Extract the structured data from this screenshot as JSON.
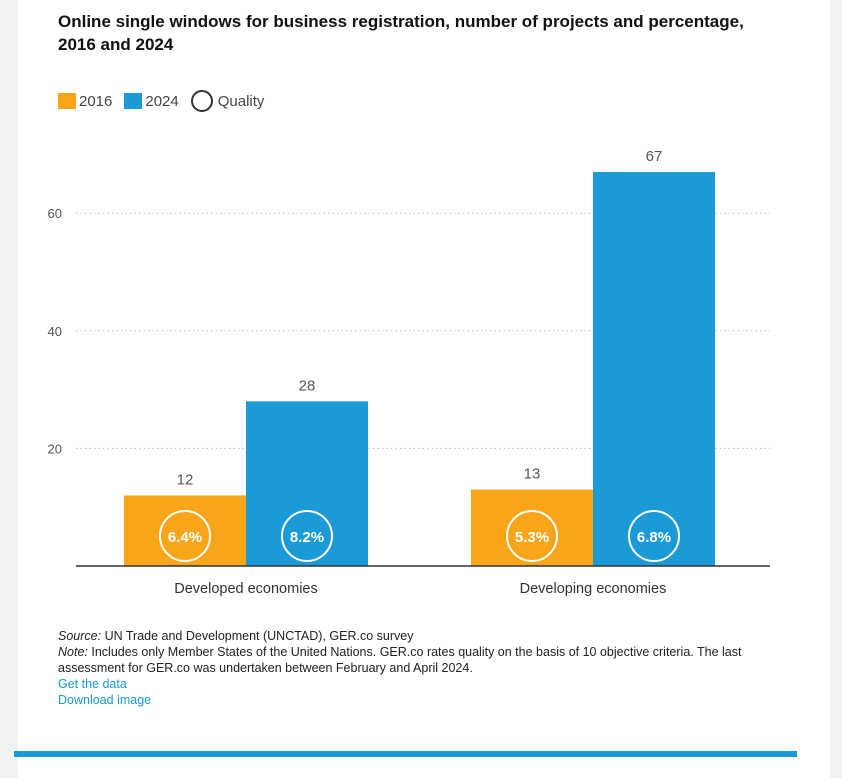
{
  "header": {
    "title": "Online single windows for business registration, number of projects and percentage, 2016 and 2024"
  },
  "legend": {
    "items": [
      {
        "label": "2016",
        "color": "#f9a51a"
      },
      {
        "label": "2024",
        "color": "#1a9ad6"
      }
    ],
    "quality_label": "Quality"
  },
  "chart_data": {
    "type": "bar",
    "title": "Online single windows for business registration, number of projects and percentage, 2016 and 2024",
    "categories": [
      "Developed economies",
      "Developing economies"
    ],
    "series": [
      {
        "name": "2016",
        "values": [
          12,
          13
        ],
        "quality": [
          "6.4%",
          "5.3%"
        ],
        "color": "#f9a51a"
      },
      {
        "name": "2024",
        "values": [
          28,
          67
        ],
        "quality": [
          "8.2%",
          "6.8%"
        ],
        "color": "#1a9ad6"
      }
    ],
    "yticks": [
      20,
      40,
      60
    ],
    "ylim": [
      0,
      70
    ],
    "grid": true,
    "legend_position": "top-left"
  },
  "footer": {
    "source_label": "Source:",
    "source_text": " UN Trade and Development (UNCTAD), GER.co survey",
    "note_label": "Note:",
    "note_text": " Includes only Member States of the United Nations. GER.co rates quality on the basis of 10 objective criteria. The last assessment for GER.co was undertaken between February and April 2024.",
    "link_data": "Get the data",
    "link_image": "Download image"
  }
}
